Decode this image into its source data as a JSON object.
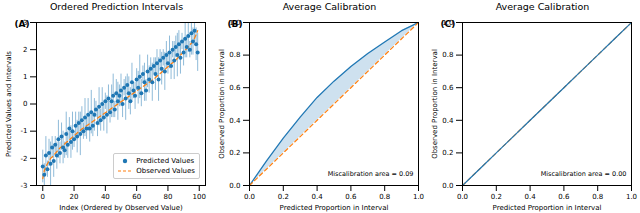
{
  "chart_data": [
    {
      "type": "interval",
      "panel_label": "(A)",
      "title": "Ordered Prediction Intervals",
      "xlabel": "Index (Ordered by Observed Value)",
      "ylabel": "Predicted Values and Intervals",
      "xlim": [
        -4,
        104
      ],
      "xticks": [
        0,
        20,
        40,
        60,
        80,
        100
      ],
      "ylim": [
        -3,
        3
      ],
      "yticks": [
        -3,
        -2,
        -1,
        0,
        1,
        2,
        3
      ],
      "legend": "lower right",
      "x": [
        0,
        1,
        2,
        3,
        4,
        5,
        6,
        7,
        8,
        9,
        10,
        11,
        12,
        13,
        14,
        15,
        16,
        17,
        18,
        19,
        20,
        21,
        22,
        23,
        24,
        25,
        26,
        27,
        28,
        29,
        30,
        31,
        32,
        33,
        34,
        35,
        36,
        37,
        38,
        39,
        40,
        41,
        42,
        43,
        44,
        45,
        46,
        47,
        48,
        49,
        50,
        51,
        52,
        53,
        54,
        55,
        56,
        57,
        58,
        59,
        60,
        61,
        62,
        63,
        64,
        65,
        66,
        67,
        68,
        69,
        70,
        71,
        72,
        73,
        74,
        75,
        76,
        77,
        78,
        79,
        80,
        81,
        82,
        83,
        84,
        85,
        86,
        87,
        88,
        89,
        90,
        91,
        92,
        93,
        94,
        95,
        96,
        97,
        98,
        99
      ],
      "series": [
        {
          "name": "Predicted Values",
          "color": "#1f77b4",
          "marker": "circle",
          "values": [
            -2.3,
            -2.6,
            -1.9,
            -2.4,
            -1.8,
            -2.2,
            -1.6,
            -2.1,
            -1.5,
            -1.9,
            -1.3,
            -1.8,
            -1.2,
            -1.6,
            -1.7,
            -1.1,
            -1.5,
            -0.9,
            -1.4,
            -1.0,
            -1.3,
            -0.8,
            -1.2,
            -0.7,
            -1.1,
            -0.6,
            -1.0,
            -0.5,
            -0.9,
            -0.4,
            -0.9,
            -0.3,
            -0.8,
            -0.4,
            -0.2,
            -0.7,
            -0.1,
            -0.6,
            0.0,
            -0.5,
            0.1,
            -0.4,
            0.2,
            -0.3,
            0.1,
            0.3,
            -0.2,
            0.4,
            0.1,
            0.3,
            0.5,
            0.0,
            0.6,
            0.2,
            0.7,
            0.4,
            0.1,
            0.8,
            0.5,
            0.3,
            0.9,
            0.6,
            1.0,
            0.4,
            1.1,
            0.8,
            0.5,
            1.2,
            0.9,
            1.3,
            0.8,
            1.4,
            1.1,
            1.5,
            0.9,
            1.6,
            1.3,
            1.7,
            1.2,
            1.8,
            1.5,
            1.9,
            1.4,
            2.0,
            1.6,
            2.1,
            1.8,
            2.2,
            1.7,
            2.3,
            1.9,
            2.4,
            2.1,
            2.5,
            2.0,
            2.6,
            2.3,
            2.7,
            2.2,
            1.9
          ],
          "error": [
            0.6,
            0.4,
            0.7,
            0.3,
            0.5,
            0.8,
            0.4,
            0.6,
            0.3,
            0.5,
            0.7,
            0.4,
            0.5,
            0.6,
            0.3,
            0.8,
            0.5,
            0.4,
            0.6,
            0.7,
            0.3,
            0.5,
            0.6,
            0.4,
            0.8,
            0.5,
            0.3,
            0.7,
            0.4,
            0.6,
            0.5,
            0.8,
            0.4,
            0.6,
            0.3,
            0.5,
            0.7,
            0.4,
            0.6,
            0.5,
            0.3,
            0.7,
            0.5,
            0.4,
            0.6,
            0.8,
            0.3,
            0.5,
            0.7,
            0.4,
            0.6,
            0.5,
            0.3,
            0.8,
            0.4,
            0.6,
            0.5,
            0.7,
            0.3,
            0.5,
            0.4,
            0.6,
            0.8,
            0.5,
            0.3,
            0.7,
            0.4,
            0.6,
            0.5,
            0.4,
            0.7,
            0.3,
            0.6,
            0.5,
            0.8,
            0.4,
            0.6,
            0.3,
            0.7,
            0.5,
            0.4,
            0.6,
            0.5,
            0.3,
            0.7,
            0.4,
            0.8,
            0.5,
            0.6,
            0.3,
            0.5,
            0.7,
            0.4,
            0.6,
            0.3,
            0.8,
            0.5,
            0.4,
            0.6,
            0.7
          ]
        },
        {
          "name": "Observed Values",
          "color": "#ff7f0e",
          "line_style": "dashed",
          "values": [
            -2.75,
            -2.45,
            -2.3,
            -2.2,
            -2.1,
            -2.0,
            -1.95,
            -1.9,
            -1.82,
            -1.75,
            -1.68,
            -1.62,
            -1.57,
            -1.52,
            -1.47,
            -1.42,
            -1.37,
            -1.32,
            -1.27,
            -1.22,
            -1.17,
            -1.12,
            -1.07,
            -1.02,
            -0.97,
            -0.92,
            -0.88,
            -0.84,
            -0.8,
            -0.76,
            -0.72,
            -0.68,
            -0.64,
            -0.6,
            -0.56,
            -0.52,
            -0.48,
            -0.44,
            -0.4,
            -0.36,
            -0.32,
            -0.28,
            -0.24,
            -0.2,
            -0.16,
            -0.12,
            -0.08,
            -0.04,
            0.0,
            0.04,
            0.08,
            0.12,
            0.16,
            0.2,
            0.24,
            0.28,
            0.32,
            0.36,
            0.4,
            0.44,
            0.48,
            0.52,
            0.56,
            0.6,
            0.64,
            0.68,
            0.72,
            0.76,
            0.8,
            0.84,
            0.88,
            0.92,
            0.97,
            1.02,
            1.07,
            1.12,
            1.17,
            1.22,
            1.27,
            1.32,
            1.37,
            1.42,
            1.47,
            1.52,
            1.57,
            1.62,
            1.68,
            1.74,
            1.8,
            1.86,
            1.92,
            1.98,
            2.04,
            2.1,
            2.17,
            2.24,
            2.32,
            2.42,
            2.55,
            2.7
          ]
        }
      ]
    },
    {
      "type": "calibration",
      "panel_label": "(B)",
      "title": "Average Calibration",
      "xlabel": "Predicted Proportion in Interval",
      "ylabel": "Observed Proportion in Interval",
      "annotation": "Miscalibration area = 0.09",
      "xlim": [
        0,
        1
      ],
      "xticks": [
        {
          "value": 0,
          "label": "0.0"
        },
        0.2,
        0.4,
        0.6,
        0.8,
        {
          "value": 1,
          "label": "1.0"
        }
      ],
      "ylim": [
        0,
        1
      ],
      "yticks": [
        {
          "value": 0,
          "label": "0.0"
        },
        0.2,
        0.4,
        0.6,
        0.8,
        {
          "value": 1,
          "label": "1.0"
        }
      ],
      "x": [
        0,
        0.1,
        0.2,
        0.3,
        0.4,
        0.5,
        0.6,
        0.7,
        0.8,
        0.9,
        1.0
      ],
      "series": [
        {
          "color": "#1f77b4",
          "line_style": "solid",
          "values": [
            0,
            0.15,
            0.29,
            0.42,
            0.54,
            0.64,
            0.73,
            0.81,
            0.88,
            0.95,
            1.0
          ]
        },
        {
          "color": "#ff7f0e",
          "line_style": "dashed",
          "values": [
            0,
            0.1,
            0.2,
            0.3,
            0.4,
            0.5,
            0.6,
            0.7,
            0.8,
            0.9,
            1.0
          ]
        }
      ]
    },
    {
      "type": "calibration",
      "panel_label": "(C)",
      "title": "Average Calibration",
      "xlabel": "Predicted Proportion in Interval",
      "ylabel": "Observed Proportion in Interval",
      "annotation": "Miscalibration area = 0.00",
      "xlim": [
        0,
        1
      ],
      "xticks": [
        {
          "value": 0,
          "label": "0.0"
        },
        0.2,
        0.4,
        0.6,
        0.8,
        {
          "value": 1,
          "label": "1.0"
        }
      ],
      "ylim": [
        0,
        1
      ],
      "yticks": [
        {
          "value": 0,
          "label": "0.0"
        },
        0.2,
        0.4,
        0.6,
        0.8,
        {
          "value": 1,
          "label": "1.0"
        }
      ],
      "x": [
        0,
        0.1,
        0.2,
        0.3,
        0.4,
        0.5,
        0.6,
        0.7,
        0.8,
        0.9,
        1.0
      ],
      "series": [
        {
          "color": "#ff7f0e",
          "line_style": "dashed",
          "values": [
            0,
            0.1,
            0.2,
            0.3,
            0.4,
            0.5,
            0.6,
            0.7,
            0.8,
            0.9,
            1.0
          ]
        },
        {
          "color": "#1f77b4",
          "line_style": "solid",
          "values": [
            0,
            0.1,
            0.2,
            0.3,
            0.4,
            0.5,
            0.6,
            0.7,
            0.8,
            0.9,
            1.0
          ]
        }
      ]
    }
  ]
}
